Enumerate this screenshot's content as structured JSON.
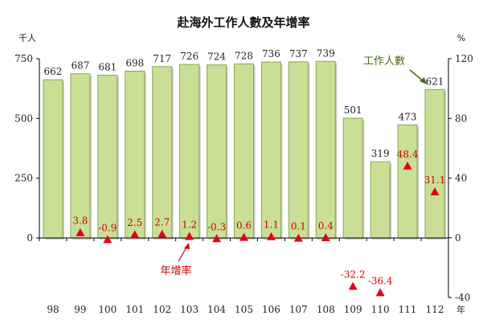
{
  "chart_data": {
    "type": "bar",
    "title": "赴海外工作人數及年增率",
    "left_unit": "千人",
    "right_unit": "%",
    "x_unit": "年",
    "categories": [
      "98",
      "99",
      "100",
      "101",
      "102",
      "103",
      "104",
      "105",
      "106",
      "107",
      "108",
      "109",
      "110",
      "111",
      "112"
    ],
    "series": [
      {
        "name": "工作人數",
        "axis": "left",
        "kind": "bar",
        "values": [
          662,
          687,
          681,
          698,
          717,
          726,
          724,
          728,
          736,
          737,
          739,
          501,
          319,
          473,
          621
        ],
        "labels": [
          "662",
          "687",
          "681",
          "698",
          "717",
          "726",
          "724",
          "728",
          "736",
          "737",
          "739",
          "501",
          "319",
          "473",
          "621"
        ]
      },
      {
        "name": "年增率",
        "axis": "right",
        "kind": "marker",
        "values": [
          null,
          3.8,
          -0.9,
          2.5,
          2.7,
          1.2,
          -0.3,
          0.6,
          1.1,
          0.1,
          0.4,
          -32.2,
          -36.4,
          48.4,
          31.1
        ],
        "labels": [
          "",
          "3.8",
          "-0.9",
          "2.5",
          "2.7",
          "1.2",
          "-0.3",
          "0.6",
          "1.1",
          "0.1",
          "0.4",
          "-32.2",
          "-36.4",
          "48.4",
          "31.1"
        ]
      }
    ],
    "left_axis": {
      "ylim": [
        0,
        750
      ],
      "ticks": [
        "0",
        "250",
        "500",
        "750"
      ]
    },
    "right_axis": {
      "ylim": [
        -40,
        120
      ],
      "ticks": [
        "-40",
        "0",
        "40",
        "80",
        "120"
      ]
    },
    "grid": false,
    "colors": {
      "bar_fill": "#c9df96",
      "bar_stroke": "#8aa84c",
      "marker": "#e3001b",
      "rate_label": "#d40000",
      "bar_annotation": "#4a6b14",
      "rate_annotation": "#d40000"
    },
    "annotations": {
      "bar_series": "工作人數",
      "rate_series": "年增率"
    }
  }
}
